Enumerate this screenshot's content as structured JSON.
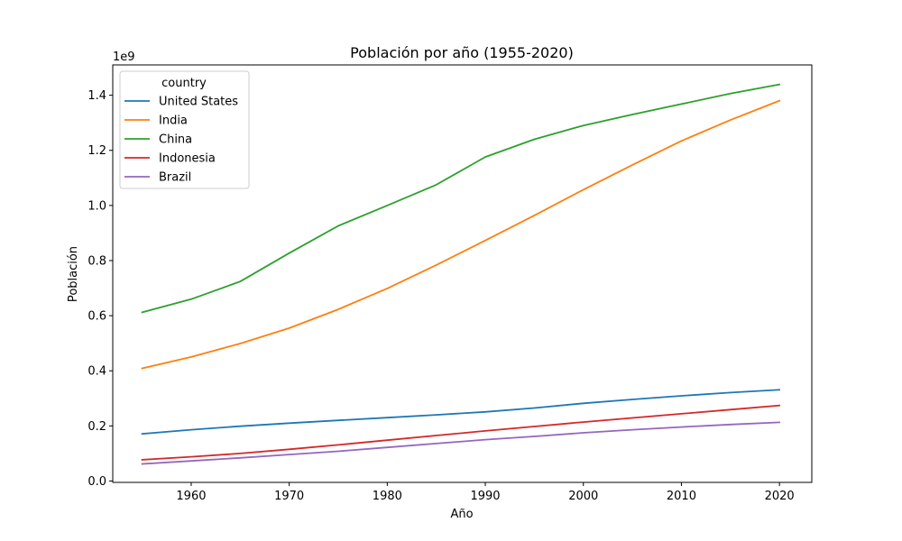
{
  "chart_data": {
    "type": "line",
    "title": "Población por año (1955-2020)",
    "xlabel": "Año",
    "ylabel": "Población",
    "y_offset_label": "1e9",
    "xlim": [
      1952,
      2023.3
    ],
    "ylim": [
      -0.005,
      1.51
    ],
    "x_ticks": [
      1960,
      1970,
      1980,
      1990,
      2000,
      2010,
      2020
    ],
    "y_ticks": [
      0.0,
      0.2,
      0.4,
      0.6,
      0.8,
      1.0,
      1.2,
      1.4
    ],
    "y_tick_labels": [
      "0.0",
      "0.2",
      "0.4",
      "0.6",
      "0.8",
      "1.0",
      "1.2",
      "1.4"
    ],
    "grid": false,
    "legend": {
      "title": "country",
      "placement": "top-left"
    },
    "x": [
      1955,
      1960,
      1965,
      1970,
      1975,
      1980,
      1985,
      1990,
      1995,
      2000,
      2005,
      2010,
      2015,
      2020
    ],
    "series": [
      {
        "name": "United States",
        "color": "#1f77b4",
        "values": [
          0.171,
          0.186,
          0.199,
          0.21,
          0.22,
          0.23,
          0.24,
          0.251,
          0.265,
          0.282,
          0.296,
          0.309,
          0.321,
          0.331
        ]
      },
      {
        "name": "India",
        "color": "#ff7f0e",
        "values": [
          0.409,
          0.45,
          0.499,
          0.555,
          0.623,
          0.699,
          0.784,
          0.873,
          0.964,
          1.057,
          1.147,
          1.234,
          1.31,
          1.38
        ]
      },
      {
        "name": "China",
        "color": "#2ca02c",
        "values": [
          0.612,
          0.66,
          0.724,
          0.827,
          0.926,
          1.0,
          1.075,
          1.176,
          1.24,
          1.29,
          1.33,
          1.368,
          1.406,
          1.439
        ]
      },
      {
        "name": "Indonesia",
        "color": "#d62728",
        "values": [
          0.077,
          0.088,
          0.1,
          0.115,
          0.131,
          0.148,
          0.165,
          0.182,
          0.198,
          0.214,
          0.229,
          0.244,
          0.259,
          0.274
        ]
      },
      {
        "name": "Brazil",
        "color": "#9467bd",
        "values": [
          0.062,
          0.073,
          0.084,
          0.096,
          0.108,
          0.122,
          0.136,
          0.15,
          0.162,
          0.175,
          0.186,
          0.196,
          0.205,
          0.213
        ]
      }
    ]
  }
}
